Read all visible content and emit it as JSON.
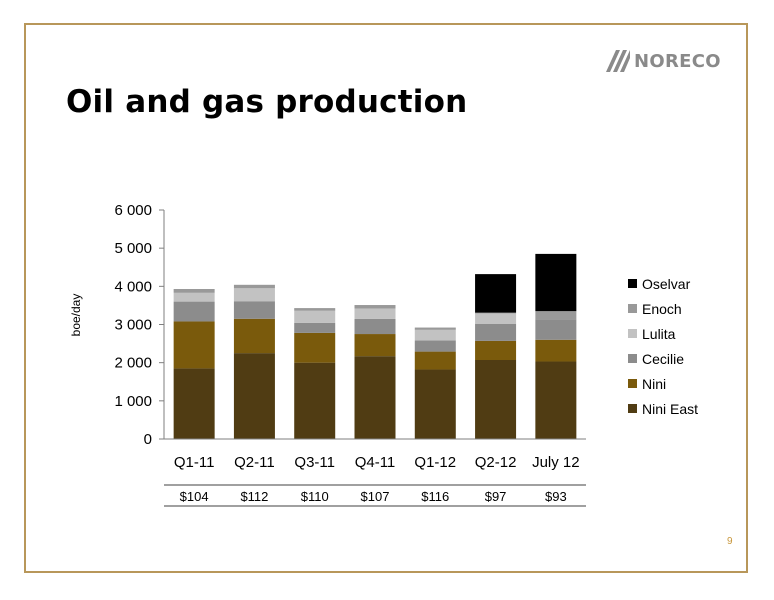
{
  "slide": {
    "title": "Oil and gas production",
    "logo_text": "NORECO",
    "page_number": "9"
  },
  "colors": {
    "frame": "#b8975a",
    "page_number": "#c8963a"
  },
  "chart_data": {
    "type": "bar",
    "stacked": true,
    "title": "",
    "xlabel": "",
    "ylabel": "boe/day",
    "ylim": [
      0,
      6000
    ],
    "yticks": [
      0,
      1000,
      2000,
      3000,
      4000,
      5000,
      6000
    ],
    "ytick_labels": [
      "0",
      "1 000",
      "2 000",
      "3 000",
      "4 000",
      "5 000",
      "6 000"
    ],
    "categories": [
      "Q1-11",
      "Q2-11",
      "Q3-11",
      "Q4-11",
      "Q1-12",
      "Q2-12",
      "July 12"
    ],
    "series": [
      {
        "name": "Nini East",
        "color": "#503c13",
        "values": [
          1850,
          2250,
          2000,
          2170,
          1820,
          2070,
          2030
        ]
      },
      {
        "name": "Nini",
        "color": "#7a5a0c",
        "values": [
          1230,
          900,
          780,
          580,
          470,
          500,
          570
        ]
      },
      {
        "name": "Cecilie",
        "color": "#8c8c8c",
        "values": [
          520,
          460,
          260,
          400,
          290,
          450,
          540
        ]
      },
      {
        "name": "Lulita",
        "color": "#c2c2c2",
        "values": [
          230,
          340,
          320,
          270,
          280,
          270,
          0
        ]
      },
      {
        "name": "Enoch",
        "color": "#999999",
        "values": [
          100,
          90,
          70,
          90,
          60,
          20,
          210
        ]
      },
      {
        "name": "Oselvar",
        "color": "#000000",
        "values": [
          0,
          0,
          0,
          0,
          0,
          1010,
          1500
        ]
      }
    ],
    "grid": false,
    "legend_position": "right",
    "annotation_row": [
      "$104",
      "$112",
      "$110",
      "$107",
      "$116",
      "$97",
      "$93"
    ]
  }
}
